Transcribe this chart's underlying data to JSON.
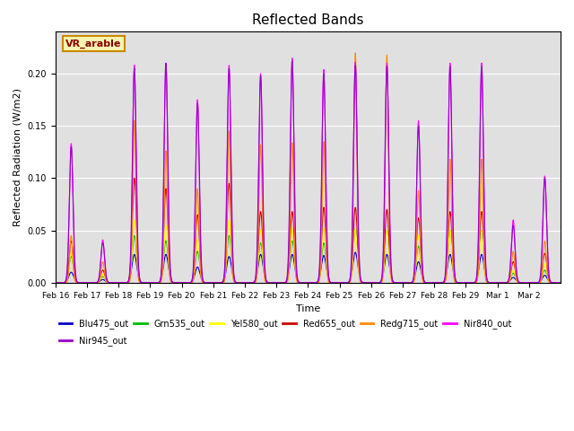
{
  "title": "Reflected Bands",
  "xlabel": "Time",
  "ylabel": "Reflected Radiation (W/m2)",
  "annotation": "VR_arable",
  "ylim": [
    0,
    0.24
  ],
  "xlim": [
    0,
    16
  ],
  "background_color": "#e0e0e0",
  "series_order": [
    "Blu475_out",
    "Grn535_out",
    "Yel580_out",
    "Red655_out",
    "Redg715_out",
    "Nir840_out",
    "Nir945_out"
  ],
  "series": {
    "Blu475_out": {
      "color": "#0000cc",
      "lw": 0.8
    },
    "Grn535_out": {
      "color": "#00bb00",
      "lw": 0.8
    },
    "Yel580_out": {
      "color": "#ffff00",
      "lw": 0.8
    },
    "Red655_out": {
      "color": "#cc0000",
      "lw": 0.8
    },
    "Redg715_out": {
      "color": "#ff8800",
      "lw": 0.8
    },
    "Nir840_out": {
      "color": "#ff00ff",
      "lw": 0.8
    },
    "Nir945_out": {
      "color": "#9900cc",
      "lw": 0.8
    }
  },
  "tick_labels": [
    "Feb 16",
    "Feb 17",
    "Feb 18",
    "Feb 19",
    "Feb 20",
    "Feb 21",
    "Feb 22",
    "Feb 23",
    "Feb 24",
    "Feb 25",
    "Feb 26",
    "Feb 27",
    "Feb 28",
    "Feb 29",
    "Mar 1",
    "Mar 2"
  ],
  "legend_row1": [
    "Blu475_out",
    "Grn535_out",
    "Yel580_out",
    "Red655_out",
    "Redg715_out",
    "Nir840_out"
  ],
  "legend_row2": [
    "Nir945_out"
  ],
  "peaks": {
    "Nir840_out": [
      0.133,
      0.041,
      0.208,
      0.21,
      0.175,
      0.208,
      0.2,
      0.215,
      0.204,
      0.211,
      0.21,
      0.155,
      0.21,
      0.21,
      0.06,
      0.102
    ],
    "Nir945_out": [
      0.13,
      0.038,
      0.205,
      0.21,
      0.172,
      0.205,
      0.198,
      0.212,
      0.2,
      0.208,
      0.207,
      0.15,
      0.207,
      0.207,
      0.055,
      0.1
    ],
    "Redg715_out": [
      0.045,
      0.02,
      0.155,
      0.126,
      0.09,
      0.145,
      0.132,
      0.134,
      0.135,
      0.22,
      0.218,
      0.088,
      0.118,
      0.118,
      0.03,
      0.04
    ],
    "Red655_out": [
      0.04,
      0.012,
      0.1,
      0.09,
      0.065,
      0.095,
      0.068,
      0.068,
      0.072,
      0.072,
      0.07,
      0.062,
      0.068,
      0.068,
      0.02,
      0.028
    ],
    "Yel580_out": [
      0.03,
      0.008,
      0.06,
      0.055,
      0.042,
      0.06,
      0.05,
      0.052,
      0.052,
      0.052,
      0.05,
      0.045,
      0.05,
      0.05,
      0.012,
      0.018
    ],
    "Grn535_out": [
      0.025,
      0.006,
      0.045,
      0.04,
      0.03,
      0.045,
      0.038,
      0.04,
      0.038,
      0.052,
      0.05,
      0.035,
      0.05,
      0.05,
      0.009,
      0.012
    ],
    "Blu475_out": [
      0.01,
      0.003,
      0.027,
      0.027,
      0.015,
      0.025,
      0.027,
      0.027,
      0.026,
      0.029,
      0.027,
      0.02,
      0.027,
      0.027,
      0.005,
      0.007
    ]
  },
  "peak_widths": {
    "Nir840_out": 0.055,
    "Nir945_out": 0.06,
    "Redg715_out": 0.048,
    "Red655_out": 0.065,
    "Yel580_out": 0.058,
    "Grn535_out": 0.07,
    "Blu475_out": 0.075
  },
  "peak_offsets": {
    "Nir840_out": 0.5,
    "Nir945_out": 0.5,
    "Redg715_out": 0.5,
    "Red655_out": 0.5,
    "Yel580_out": 0.5,
    "Grn535_out": 0.5,
    "Blu475_out": 0.5
  }
}
